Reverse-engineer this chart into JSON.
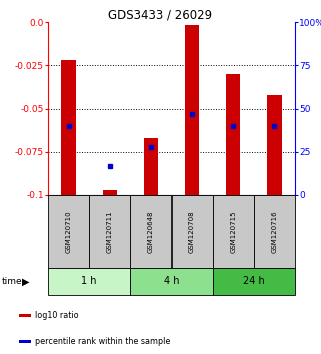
{
  "title": "GDS3433 / 26029",
  "samples": [
    "GSM120710",
    "GSM120711",
    "GSM120648",
    "GSM120708",
    "GSM120715",
    "GSM120716"
  ],
  "groups": [
    {
      "label": "1 h",
      "indices": [
        0,
        1
      ],
      "color": "#c8f5c8"
    },
    {
      "label": "4 h",
      "indices": [
        2,
        3
      ],
      "color": "#8de08d"
    },
    {
      "label": "24 h",
      "indices": [
        4,
        5
      ],
      "color": "#44bb44"
    }
  ],
  "log10_ratio": [
    -0.022,
    -0.097,
    -0.067,
    -0.002,
    -0.03,
    -0.042
  ],
  "percentile_rank": [
    0.4,
    0.17,
    0.28,
    0.47,
    0.4,
    0.4
  ],
  "ylim_left": [
    -0.1,
    0.0
  ],
  "ylim_right": [
    0,
    100
  ],
  "yticks_left": [
    0.0,
    -0.025,
    -0.05,
    -0.075,
    -0.1
  ],
  "yticks_right": [
    0,
    25,
    50,
    75,
    100
  ],
  "bar_color": "#cc0000",
  "dot_color": "#0000cc",
  "legend_items": [
    {
      "label": "log10 ratio",
      "color": "#cc0000"
    },
    {
      "label": "percentile rank within the sample",
      "color": "#0000cc"
    }
  ],
  "bar_width": 0.35,
  "sample_box_color": "#c8c8c8",
  "sample_box_edge": "#000000",
  "fig_width": 3.21,
  "fig_height": 3.54,
  "dpi": 100
}
